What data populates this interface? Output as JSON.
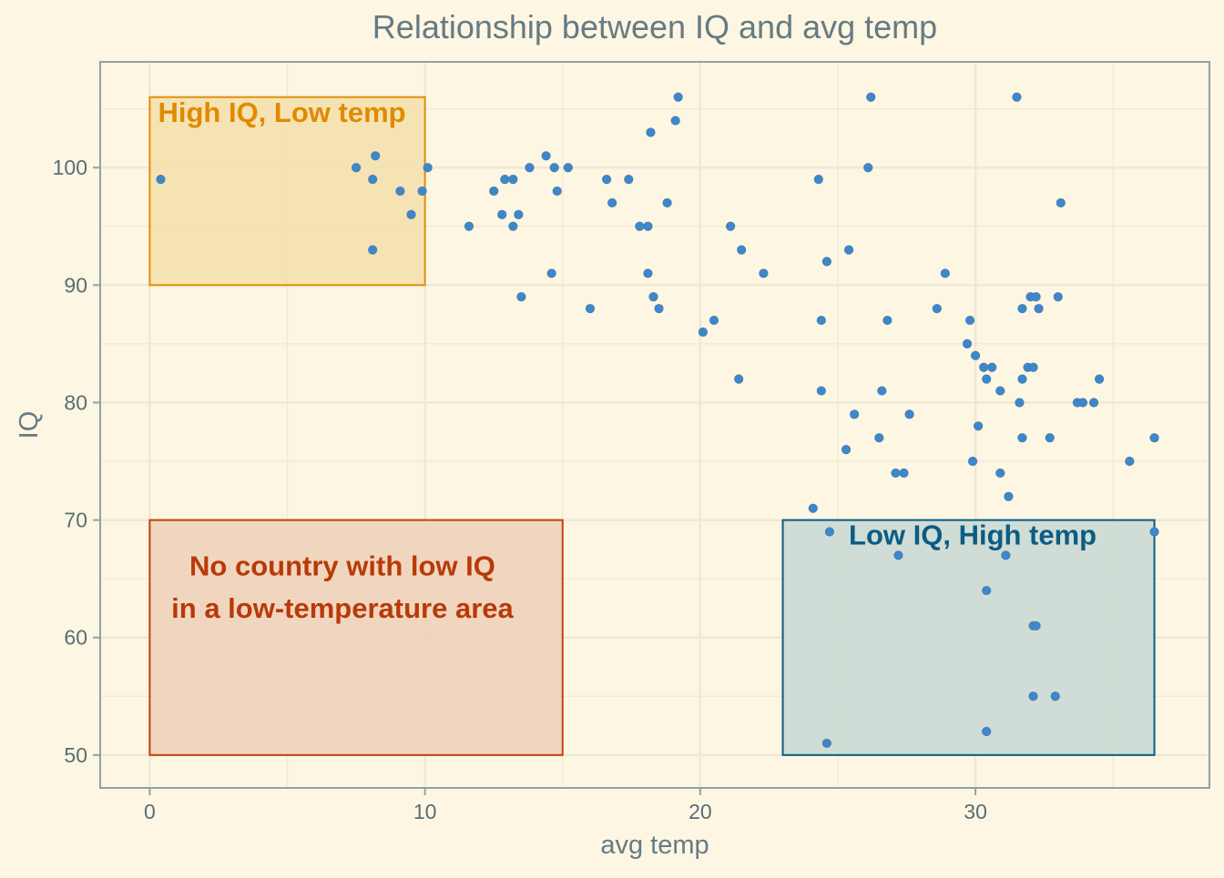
{
  "chart_data": {
    "type": "scatter",
    "title": "Relationship between IQ and avg temp",
    "xlabel": "avg temp",
    "ylabel": "IQ",
    "xlim": [
      -1.8,
      38.5
    ],
    "ylim": [
      47.2,
      109
    ],
    "x_ticks": [
      0,
      10,
      20,
      30
    ],
    "y_ticks": [
      50,
      60,
      70,
      80,
      90,
      100
    ],
    "grid": true,
    "legend": "none",
    "colors": {
      "background": "#fdf6e3",
      "grid": "#eee8d5",
      "axis": "#93a1a1",
      "title": "#657b83",
      "tick_label": "#586e75",
      "point": "#3b88cc",
      "point_stroke": "#4a7fb0"
    },
    "points": [
      {
        "x": 0.4,
        "y": 99
      },
      {
        "x": 7.5,
        "y": 100
      },
      {
        "x": 8.1,
        "y": 99
      },
      {
        "x": 8.2,
        "y": 101
      },
      {
        "x": 8.1,
        "y": 93
      },
      {
        "x": 9.1,
        "y": 98
      },
      {
        "x": 9.5,
        "y": 96
      },
      {
        "x": 9.9,
        "y": 98
      },
      {
        "x": 10.1,
        "y": 100
      },
      {
        "x": 11.6,
        "y": 95
      },
      {
        "x": 12.5,
        "y": 98
      },
      {
        "x": 12.8,
        "y": 96
      },
      {
        "x": 12.9,
        "y": 99
      },
      {
        "x": 13.2,
        "y": 99
      },
      {
        "x": 13.2,
        "y": 95
      },
      {
        "x": 13.4,
        "y": 96
      },
      {
        "x": 13.5,
        "y": 89
      },
      {
        "x": 13.8,
        "y": 100
      },
      {
        "x": 14.4,
        "y": 101
      },
      {
        "x": 14.6,
        "y": 91
      },
      {
        "x": 14.7,
        "y": 100
      },
      {
        "x": 14.8,
        "y": 98
      },
      {
        "x": 15.2,
        "y": 100
      },
      {
        "x": 16.0,
        "y": 88
      },
      {
        "x": 16.6,
        "y": 99
      },
      {
        "x": 16.8,
        "y": 97
      },
      {
        "x": 17.4,
        "y": 99
      },
      {
        "x": 17.8,
        "y": 95
      },
      {
        "x": 18.1,
        "y": 95
      },
      {
        "x": 18.1,
        "y": 91
      },
      {
        "x": 18.2,
        "y": 103
      },
      {
        "x": 18.3,
        "y": 89
      },
      {
        "x": 18.5,
        "y": 88
      },
      {
        "x": 18.8,
        "y": 97
      },
      {
        "x": 19.1,
        "y": 104
      },
      {
        "x": 19.2,
        "y": 106
      },
      {
        "x": 20.1,
        "y": 86
      },
      {
        "x": 20.5,
        "y": 87
      },
      {
        "x": 21.1,
        "y": 95
      },
      {
        "x": 21.4,
        "y": 82
      },
      {
        "x": 21.5,
        "y": 93
      },
      {
        "x": 22.3,
        "y": 91
      },
      {
        "x": 24.1,
        "y": 71
      },
      {
        "x": 24.3,
        "y": 99
      },
      {
        "x": 24.4,
        "y": 87
      },
      {
        "x": 24.4,
        "y": 81
      },
      {
        "x": 24.6,
        "y": 92
      },
      {
        "x": 24.7,
        "y": 69
      },
      {
        "x": 24.6,
        "y": 51
      },
      {
        "x": 25.3,
        "y": 76
      },
      {
        "x": 25.4,
        "y": 93
      },
      {
        "x": 25.6,
        "y": 79
      },
      {
        "x": 26.1,
        "y": 100
      },
      {
        "x": 26.2,
        "y": 106
      },
      {
        "x": 26.5,
        "y": 77
      },
      {
        "x": 26.6,
        "y": 81
      },
      {
        "x": 26.8,
        "y": 87
      },
      {
        "x": 27.1,
        "y": 74
      },
      {
        "x": 27.2,
        "y": 67
      },
      {
        "x": 27.4,
        "y": 74
      },
      {
        "x": 27.6,
        "y": 79
      },
      {
        "x": 28.6,
        "y": 88
      },
      {
        "x": 28.9,
        "y": 91
      },
      {
        "x": 29.7,
        "y": 85
      },
      {
        "x": 29.8,
        "y": 87
      },
      {
        "x": 29.9,
        "y": 75
      },
      {
        "x": 30.0,
        "y": 84
      },
      {
        "x": 30.1,
        "y": 78
      },
      {
        "x": 30.3,
        "y": 83
      },
      {
        "x": 30.4,
        "y": 82
      },
      {
        "x": 30.4,
        "y": 64
      },
      {
        "x": 30.4,
        "y": 52
      },
      {
        "x": 30.6,
        "y": 83
      },
      {
        "x": 30.9,
        "y": 81
      },
      {
        "x": 30.9,
        "y": 74
      },
      {
        "x": 31.1,
        "y": 67
      },
      {
        "x": 31.2,
        "y": 72
      },
      {
        "x": 31.5,
        "y": 106
      },
      {
        "x": 31.6,
        "y": 80
      },
      {
        "x": 31.7,
        "y": 88
      },
      {
        "x": 31.7,
        "y": 82
      },
      {
        "x": 31.7,
        "y": 77
      },
      {
        "x": 31.9,
        "y": 83
      },
      {
        "x": 32.0,
        "y": 89
      },
      {
        "x": 32.1,
        "y": 83
      },
      {
        "x": 32.1,
        "y": 61
      },
      {
        "x": 32.1,
        "y": 55
      },
      {
        "x": 32.2,
        "y": 61
      },
      {
        "x": 32.2,
        "y": 89
      },
      {
        "x": 32.3,
        "y": 88
      },
      {
        "x": 32.7,
        "y": 77
      },
      {
        "x": 32.9,
        "y": 55
      },
      {
        "x": 33.0,
        "y": 89
      },
      {
        "x": 33.1,
        "y": 97
      },
      {
        "x": 33.7,
        "y": 80
      },
      {
        "x": 33.9,
        "y": 80
      },
      {
        "x": 34.3,
        "y": 80
      },
      {
        "x": 34.5,
        "y": 82
      },
      {
        "x": 35.6,
        "y": 75
      },
      {
        "x": 36.5,
        "y": 77
      },
      {
        "x": 36.5,
        "y": 69
      }
    ],
    "annotations": [
      {
        "name": "high-iq-low-temp",
        "x_range": [
          0,
          10
        ],
        "y_range": [
          90,
          106
        ],
        "fill": "#f5dfac",
        "stroke": "#e0900a",
        "text_color": "#e08a00",
        "label_lines": [
          "High IQ, Low temp"
        ],
        "label_anchor": "start",
        "label_x": 0.3,
        "label_y": 103.9
      },
      {
        "name": "no-low-iq-low-temp",
        "x_range": [
          0,
          15
        ],
        "y_range": [
          50,
          70
        ],
        "fill": "#efd0b8",
        "stroke": "#c2410c",
        "text_color": "#b83a08",
        "label_lines": [
          "No country with low IQ",
          "in a low-temperature area"
        ],
        "label_anchor": "middle",
        "label_x": 7.0,
        "label_y": 65.3,
        "line_gap": 3.6
      },
      {
        "name": "low-iq-high-temp",
        "x_range": [
          23,
          36.5
        ],
        "y_range": [
          50,
          70
        ],
        "fill": "#c8d8d4",
        "stroke": "#0b5c84",
        "text_color": "#0b5c84",
        "label_lines": [
          "Low IQ, High temp"
        ],
        "label_anchor": "middle",
        "label_x": 29.9,
        "label_y": 67.9
      }
    ]
  }
}
